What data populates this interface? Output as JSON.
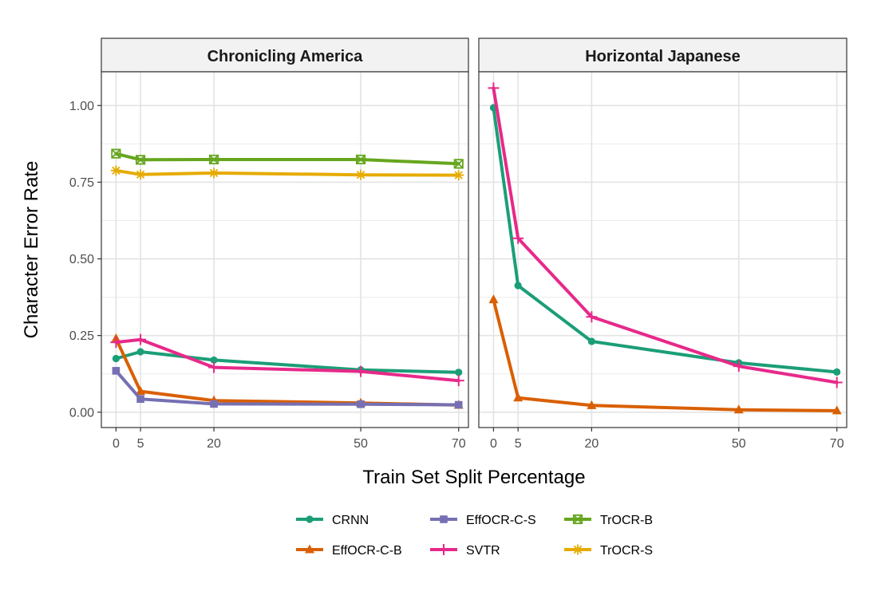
{
  "chart_data": {
    "type": "line",
    "xlabel": "Train Set Split Percentage",
    "ylabel": "Character Error Rate",
    "x_ticks": [
      0,
      5,
      20,
      50,
      70
    ],
    "y_ticks": [
      0.0,
      0.25,
      0.5,
      0.75,
      1.0
    ],
    "y_tick_labels": [
      "0.00",
      "0.25",
      "0.50",
      "0.75",
      "1.00"
    ],
    "xlim": [
      -3,
      72
    ],
    "ylim": [
      -0.05,
      1.11
    ],
    "grid": true,
    "legend_position": "bottom",
    "legend": [
      {
        "name": "CRNN",
        "color": "#1b9e77",
        "marker": "circle"
      },
      {
        "name": "EffOCR-C-B",
        "color": "#d95f02",
        "marker": "triangle"
      },
      {
        "name": "EffOCR-C-S",
        "color": "#7570b3",
        "marker": "square"
      },
      {
        "name": "SVTR",
        "color": "#e7298a",
        "marker": "plus"
      },
      {
        "name": "TrOCR-B",
        "color": "#66a61e",
        "marker": "square-cross"
      },
      {
        "name": "TrOCR-S",
        "color": "#e6ab02",
        "marker": "asterisk"
      }
    ],
    "panels": [
      {
        "title": "Chronicling America",
        "series": [
          {
            "name": "CRNN",
            "color": "#1b9e77",
            "marker": "circle",
            "x": [
              0,
              5,
              20,
              50,
              70
            ],
            "values": [
              0.175,
              0.197,
              0.17,
              0.138,
              0.13
            ]
          },
          {
            "name": "EffOCR-C-B",
            "color": "#d95f02",
            "marker": "triangle",
            "x": [
              0,
              5,
              20,
              50,
              70
            ],
            "values": [
              0.24,
              0.068,
              0.038,
              0.03,
              0.023
            ]
          },
          {
            "name": "EffOCR-C-S",
            "color": "#7570b3",
            "marker": "square",
            "x": [
              0,
              5,
              20,
              50,
              70
            ],
            "values": [
              0.135,
              0.043,
              0.027,
              0.026,
              0.024
            ]
          },
          {
            "name": "SVTR",
            "color": "#e7298a",
            "marker": "plus",
            "x": [
              0,
              5,
              20,
              50,
              70
            ],
            "values": [
              0.228,
              0.237,
              0.146,
              0.133,
              0.103
            ]
          },
          {
            "name": "TrOCR-B",
            "color": "#66a61e",
            "marker": "square-cross",
            "x": [
              0,
              5,
              20,
              50,
              70
            ],
            "values": [
              0.843,
              0.823,
              0.824,
              0.824,
              0.81
            ]
          },
          {
            "name": "TrOCR-S",
            "color": "#e6ab02",
            "marker": "asterisk",
            "x": [
              0,
              5,
              20,
              50,
              70
            ],
            "values": [
              0.788,
              0.775,
              0.78,
              0.774,
              0.773
            ]
          }
        ]
      },
      {
        "title": "Horizontal Japanese",
        "series": [
          {
            "name": "CRNN",
            "color": "#1b9e77",
            "marker": "circle",
            "x": [
              0,
              5,
              20,
              50,
              70
            ],
            "values": [
              0.993,
              0.413,
              0.231,
              0.161,
              0.131
            ]
          },
          {
            "name": "EffOCR-C-B",
            "color": "#d95f02",
            "marker": "triangle",
            "x": [
              0,
              5,
              20,
              50,
              70
            ],
            "values": [
              0.367,
              0.047,
              0.022,
              0.008,
              0.005
            ]
          },
          {
            "name": "SVTR",
            "color": "#e7298a",
            "marker": "plus",
            "x": [
              0,
              5,
              20,
              50,
              70
            ],
            "values": [
              1.057,
              0.567,
              0.311,
              0.15,
              0.097
            ]
          }
        ]
      }
    ]
  }
}
